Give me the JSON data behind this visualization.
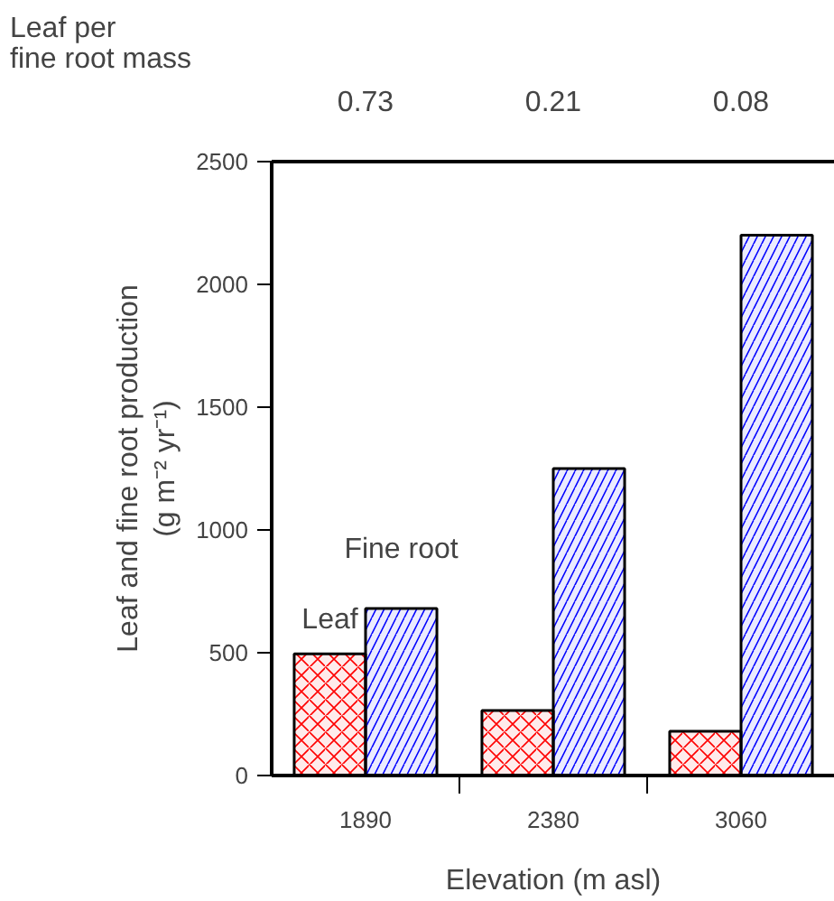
{
  "chart_data": {
    "type": "bar",
    "categories": [
      "1890",
      "2380",
      "3060"
    ],
    "series": [
      {
        "name": "Leaf",
        "color": "#ff0000",
        "values": [
          495,
          265,
          180
        ]
      },
      {
        "name": "Fine root",
        "color": "#0000ff",
        "values": [
          680,
          1250,
          2200
        ]
      }
    ],
    "xlabel": "Elevation (m asl)",
    "ylabel": "Leaf and fine root production\n(g m⁻² yr⁻¹)",
    "ylim": [
      0,
      2500
    ],
    "yticks": [
      0,
      500,
      1000,
      1500,
      2000,
      2500
    ],
    "annotations": [
      "Leaf per\nfine root mass",
      "0.73",
      "0.21",
      "0.08"
    ],
    "grid": false,
    "legend": false
  }
}
